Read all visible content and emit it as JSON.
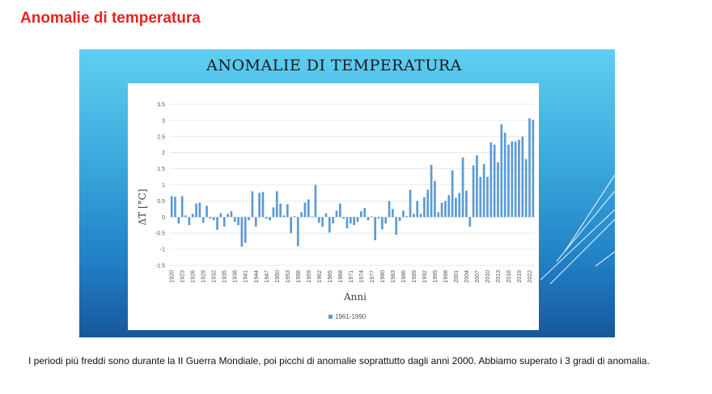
{
  "page": {
    "title": "Anomalie di temperatura",
    "caption": "I periodi più freddi sono durante la II Guerra Mondiale, poi picchi di anomalie soprattutto dagli anni 2000. Abbiamo superato i 3 gradi di anomalia."
  },
  "slide": {
    "title": "ANOMALIE DI TEMPERATURA"
  },
  "colors": {
    "title_red": "#e8231c",
    "bar": "#5b9bd5"
  },
  "chart_data": {
    "type": "bar",
    "title": "ANOMALIE DI TEMPERATURA",
    "xlabel": "Anni",
    "ylabel": "ΔT [°C]",
    "ylim": [
      -1.5,
      3.5
    ],
    "yticks": [
      "3.5",
      "3",
      "2.5",
      "2",
      "1.5",
      "1",
      "0.5",
      "0",
      "-0.5",
      "-1",
      "-1.5"
    ],
    "grid": true,
    "legend_position": "bottom",
    "x_tick_labels": [
      "1920",
      "1923",
      "1926",
      "1929",
      "1932",
      "1935",
      "1938",
      "1941",
      "1944",
      "1947",
      "1950",
      "1953",
      "1956",
      "1959",
      "1962",
      "1965",
      "1968",
      "1971",
      "1974",
      "1977",
      "1980",
      "1983",
      "1986",
      "1989",
      "1992",
      "1995",
      "1998",
      "2001",
      "2004",
      "2007",
      "2010",
      "2013",
      "2016",
      "2019",
      "2022"
    ],
    "categories": [
      1920,
      1921,
      1922,
      1923,
      1924,
      1925,
      1926,
      1927,
      1928,
      1929,
      1930,
      1931,
      1932,
      1933,
      1934,
      1935,
      1936,
      1937,
      1938,
      1939,
      1940,
      1941,
      1942,
      1943,
      1944,
      1945,
      1946,
      1947,
      1948,
      1949,
      1950,
      1951,
      1952,
      1953,
      1954,
      1955,
      1956,
      1957,
      1958,
      1959,
      1960,
      1961,
      1962,
      1963,
      1964,
      1965,
      1966,
      1967,
      1968,
      1969,
      1970,
      1971,
      1972,
      1973,
      1974,
      1975,
      1976,
      1977,
      1978,
      1979,
      1980,
      1981,
      1982,
      1983,
      1984,
      1985,
      1986,
      1987,
      1988,
      1989,
      1990,
      1991,
      1992,
      1993,
      1994,
      1995,
      1996,
      1997,
      1998,
      1999,
      2000,
      2001,
      2002,
      2003,
      2004,
      2005,
      2006,
      2007,
      2008,
      2009,
      2010,
      2011,
      2012,
      2013,
      2014,
      2015,
      2016,
      2017,
      2018,
      2019,
      2020,
      2021,
      2022,
      2023
    ],
    "series": [
      {
        "name": "1961-1990",
        "values": [
          0.65,
          0.63,
          -0.2,
          0.65,
          0.05,
          -0.25,
          0.1,
          0.42,
          0.45,
          -0.18,
          0.35,
          -0.05,
          -0.1,
          -0.4,
          0.12,
          -0.3,
          0.1,
          0.18,
          -0.15,
          -0.25,
          -0.92,
          -0.8,
          -0.1,
          0.8,
          -0.3,
          0.75,
          0.78,
          -0.05,
          -0.1,
          0.3,
          0.8,
          0.42,
          0.05,
          0.4,
          -0.5,
          0.03,
          -0.9,
          0.15,
          0.45,
          0.55,
          0.02,
          1.0,
          -0.18,
          -0.3,
          0.12,
          -0.48,
          -0.2,
          0.2,
          0.42,
          -0.05,
          -0.35,
          -0.2,
          -0.25,
          -0.15,
          0.18,
          0.28,
          -0.1,
          0.02,
          -0.72,
          -0.05,
          -0.38,
          -0.2,
          0.5,
          0.25,
          -0.55,
          -0.12,
          0.2,
          0.03,
          0.85,
          0.1,
          0.5,
          0.1,
          0.62,
          0.85,
          1.62,
          1.12,
          0.15,
          0.45,
          0.5,
          0.68,
          1.45,
          0.6,
          0.75,
          1.85,
          0.82,
          -0.3,
          1.6,
          1.92,
          1.25,
          1.65,
          1.25,
          2.32,
          2.25,
          1.7,
          2.88,
          2.62,
          2.25,
          2.35,
          2.35,
          2.4,
          2.5,
          1.8,
          3.07,
          3.02
        ]
      }
    ]
  }
}
